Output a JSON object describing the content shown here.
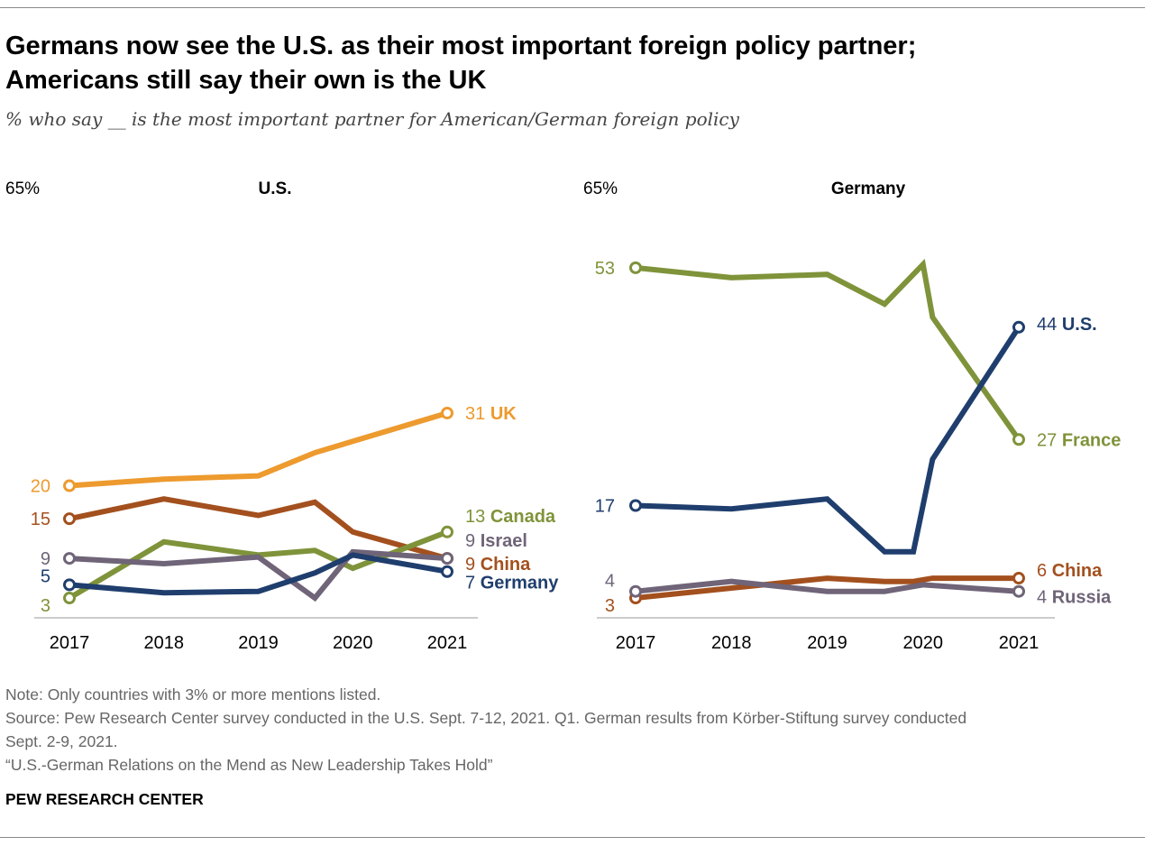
{
  "title_line1": "Germans now see the U.S. as their most important foreign policy partner;",
  "title_line2": "Americans still say their own is the UK",
  "subtitle": "% who say __ is the most important partner for American/German foreign policy",
  "notes": {
    "note": "Note: Only countries with 3% or more mentions listed.",
    "source1": "Source: Pew Research Center survey conducted in the U.S. Sept. 7-12, 2021. Q1. German results from Körber-Stiftung survey conducted",
    "source2": "Sept. 2-9, 2021.",
    "report": "“U.S.-German Relations on the Mend as New Leadership Takes Hold”"
  },
  "brand": "PEW RESEARCH CENTER",
  "colors": {
    "orange": "#ED9A2E",
    "brown": "#A3501E",
    "olive": "#7F933A",
    "gray_purple": "#6F6478",
    "navy": "#1F3E6D",
    "axis": "#bbbbbb"
  },
  "chart_data": [
    {
      "type": "line",
      "panel_title": "U.S.",
      "y_top_label": "65%",
      "ylim": [
        0,
        65
      ],
      "x_ticks": [
        "2017",
        "2018",
        "2019",
        "2020",
        "2021"
      ],
      "series": [
        {
          "name": "UK",
          "color_key": "orange",
          "x": [
            2017,
            2018,
            2019,
            2019.6,
            2021
          ],
          "values": [
            20,
            21,
            21.5,
            25,
            31
          ],
          "start_label": "20",
          "end_label": "31"
        },
        {
          "name": "China",
          "color_key": "brown",
          "x": [
            2017,
            2018,
            2019,
            2019.6,
            2020,
            2021
          ],
          "values": [
            15,
            18,
            15.5,
            17.5,
            13,
            9
          ],
          "start_label": "15",
          "end_label": "9"
        },
        {
          "name": "Canada",
          "color_key": "olive",
          "x": [
            2017,
            2018,
            2019,
            2019.6,
            2020,
            2021
          ],
          "values": [
            3,
            11.5,
            9.5,
            10.2,
            7.5,
            13
          ],
          "start_label": "3",
          "end_label": "13"
        },
        {
          "name": "Israel",
          "color_key": "gray_purple",
          "x": [
            2017,
            2018,
            2019,
            2019.6,
            2020,
            2021
          ],
          "values": [
            9,
            8.2,
            9.2,
            3,
            10,
            9
          ],
          "start_label": "9",
          "end_label": "9"
        },
        {
          "name": "Germany",
          "color_key": "navy",
          "x": [
            2017,
            2018,
            2019,
            2019.6,
            2020,
            2021
          ],
          "values": [
            5,
            3.8,
            4,
            6.8,
            9.5,
            7
          ],
          "start_label": "5",
          "end_label": "7"
        }
      ]
    },
    {
      "type": "line",
      "panel_title": "Germany",
      "y_top_label": "65%",
      "ylim": [
        0,
        65
      ],
      "x_ticks": [
        "2017",
        "2018",
        "2019",
        "2020",
        "2021"
      ],
      "series": [
        {
          "name": "France",
          "color_key": "olive",
          "x": [
            2017,
            2018,
            2019,
            2019.6,
            2020,
            2020.1,
            2021
          ],
          "values": [
            53,
            51.5,
            52,
            47.5,
            53.5,
            45.5,
            27
          ],
          "start_label": "53",
          "end_label": "27"
        },
        {
          "name": "U.S.",
          "color_key": "navy",
          "x": [
            2017,
            2018,
            2019,
            2019.6,
            2019.9,
            2020.1,
            2021
          ],
          "values": [
            17,
            16.5,
            18,
            10,
            10,
            24,
            44
          ],
          "start_label": "17",
          "end_label": "44"
        },
        {
          "name": "China",
          "color_key": "brown",
          "x": [
            2017,
            2018,
            2019,
            2019.6,
            2019.9,
            2020.1,
            2021
          ],
          "values": [
            3,
            4.5,
            6,
            5.5,
            5.5,
            6,
            6
          ],
          "start_label": "3",
          "end_label": "6"
        },
        {
          "name": "Russia",
          "color_key": "gray_purple",
          "x": [
            2017,
            2018,
            2019,
            2019.6,
            2020,
            2021
          ],
          "values": [
            4,
            5.5,
            4,
            4,
            5,
            4
          ],
          "start_label": "4",
          "end_label": "4"
        }
      ]
    }
  ]
}
